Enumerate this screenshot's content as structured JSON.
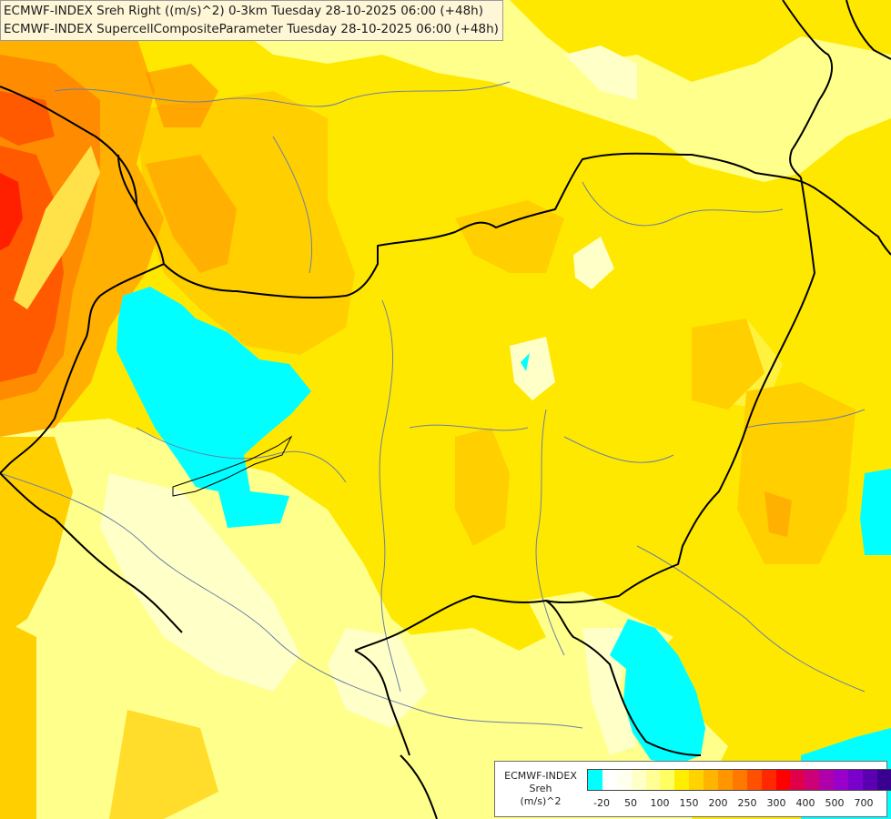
{
  "titles": {
    "line1": "ECMWF-INDEX Sreh Right ((m/s)^2) 0-3km Tuesday 28-10-2025 06:00 (+48h)",
    "line2": "ECMWF-INDEX SupercellCompositeParameter Tuesday 28-10-2025 06:00 (+48h)"
  },
  "legend": {
    "source": "ECMWF-INDEX",
    "parameter": "Sreh",
    "unit": "(m/s)^2",
    "tick_labels": [
      "-20",
      "50",
      "100",
      "150",
      "200",
      "250",
      "300",
      "400",
      "500",
      "700"
    ],
    "colors": [
      "#00ffff",
      "#ffffff",
      "#fffff0",
      "#ffffc8",
      "#ffff96",
      "#ffff64",
      "#ffee00",
      "#ffd200",
      "#ffb400",
      "#ff9600",
      "#ff7800",
      "#ff5000",
      "#ff2800",
      "#ff0000",
      "#e0004a",
      "#cc0077",
      "#b000aa",
      "#9a00cc",
      "#7a00cc",
      "#5a00b0",
      "#3a0090",
      "#0a0070"
    ]
  },
  "map_colors": {
    "base": "#ffe800",
    "light": "#ffff8c",
    "pale": "#ffffc8",
    "orange_light": "#ffcf00",
    "orange": "#ffb000",
    "orange_dark": "#ff8c00",
    "red_orange": "#ff5a00",
    "red": "#ff2000",
    "cyan": "#00ffff",
    "border": "#000000",
    "river": "#6c7fa6"
  }
}
